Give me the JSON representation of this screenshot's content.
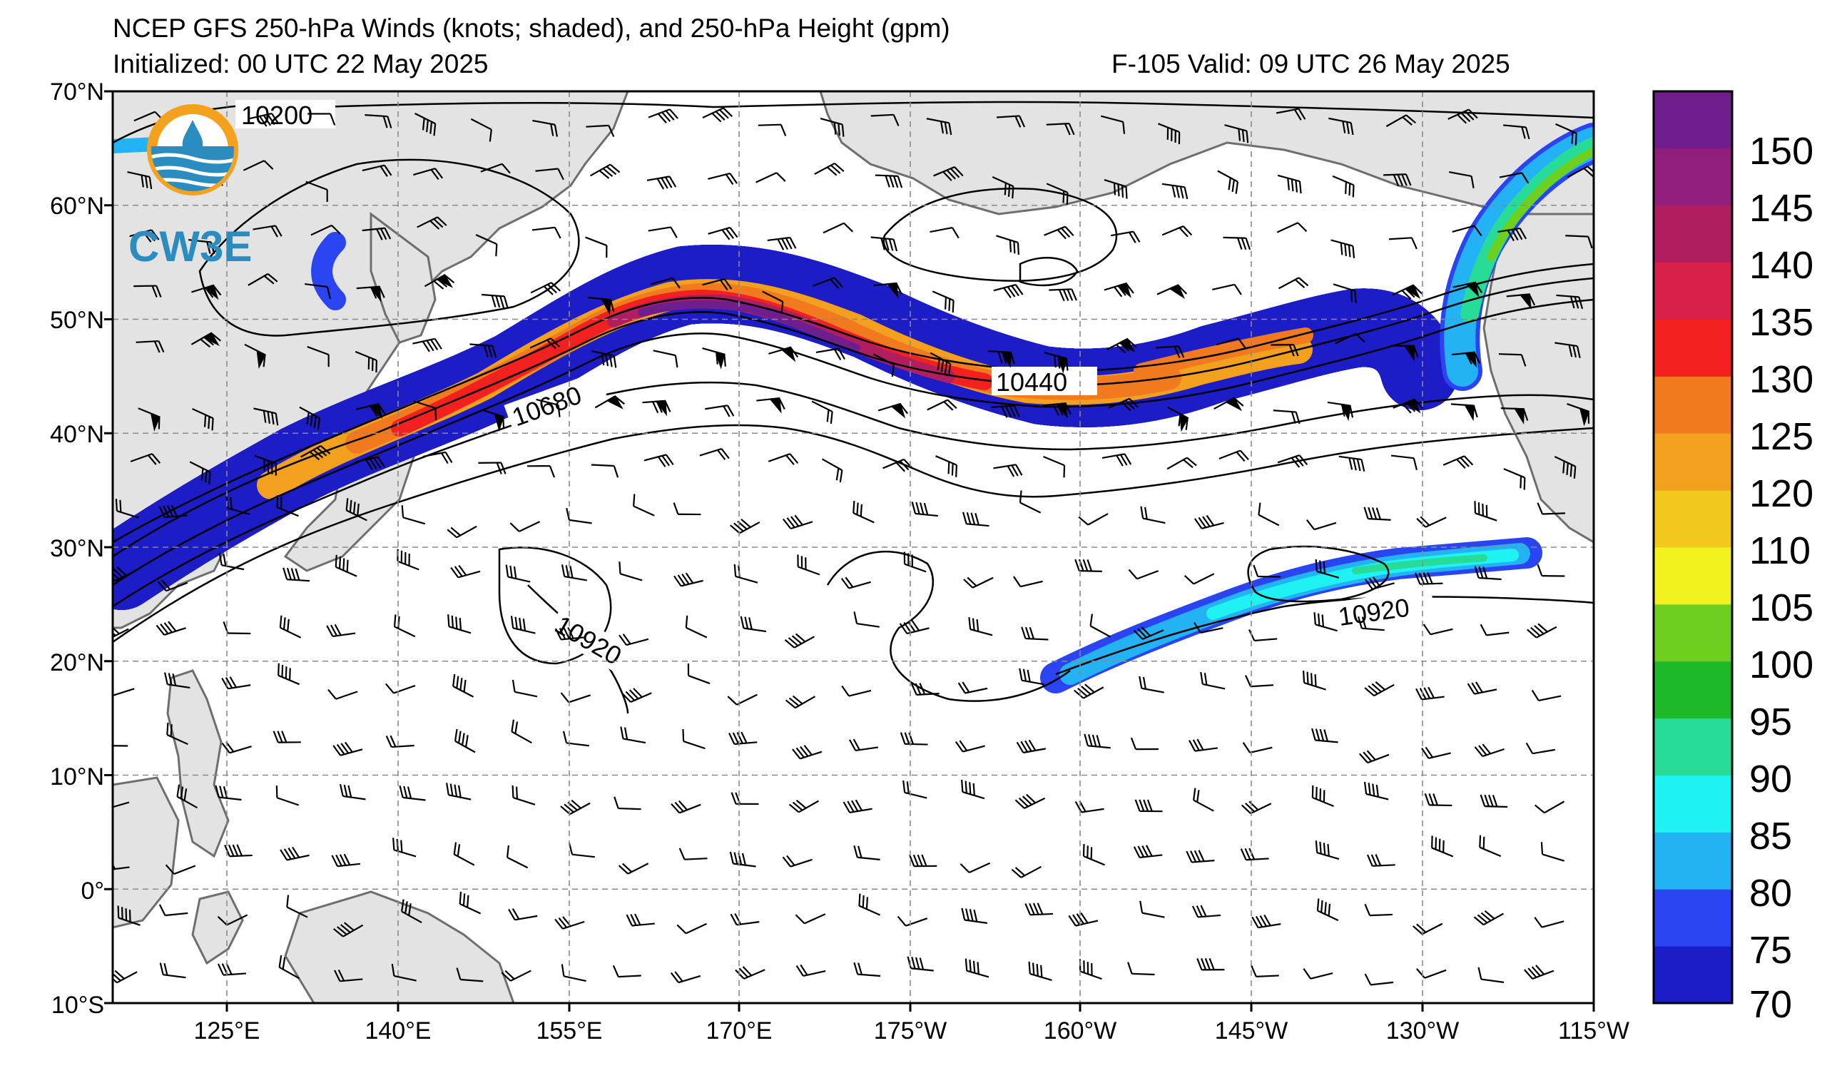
{
  "header": {
    "title": "NCEP GFS 250-hPa Winds (knots; shaded), and 250-hPa Height (gpm)",
    "initialized": "Initialized: 00 UTC 22 May 2025",
    "valid": "F-105  Valid: 09 UTC 26 May 2025"
  },
  "logo": {
    "text": "CW3E",
    "colors": {
      "ring": "#f4a21d",
      "water": "#2b8cbf",
      "text": "#2b8cbf"
    }
  },
  "map": {
    "lat_labels": [
      "70°N",
      "60°N",
      "50°N",
      "40°N",
      "30°N",
      "20°N",
      "10°N",
      "0°",
      "10°S"
    ],
    "lon_labels": [
      "125°E",
      "140°E",
      "155°E",
      "170°E",
      "175°W",
      "160°W",
      "145°W",
      "130°W",
      "115°W"
    ],
    "contour_labels": [
      "10200",
      "10680",
      "10440",
      "10920",
      "10920"
    ],
    "land_color": "#e3e3e3",
    "coast_color": "#6e6e6e"
  },
  "colorbar": {
    "ticks": [
      "150",
      "145",
      "140",
      "135",
      "130",
      "125",
      "120",
      "110",
      "105",
      "100",
      "95",
      "90",
      "85",
      "80",
      "75",
      "70"
    ],
    "colors": [
      "#1c1dc6",
      "#2a44f2",
      "#23b2f4",
      "#1ef2f2",
      "#26dc98",
      "#1eb928",
      "#6ecf1e",
      "#f2f21e",
      "#f2c81e",
      "#f2a01e",
      "#f27a1e",
      "#f2201e",
      "#d8204a",
      "#b01e60",
      "#901e7a",
      "#701e8e"
    ]
  }
}
